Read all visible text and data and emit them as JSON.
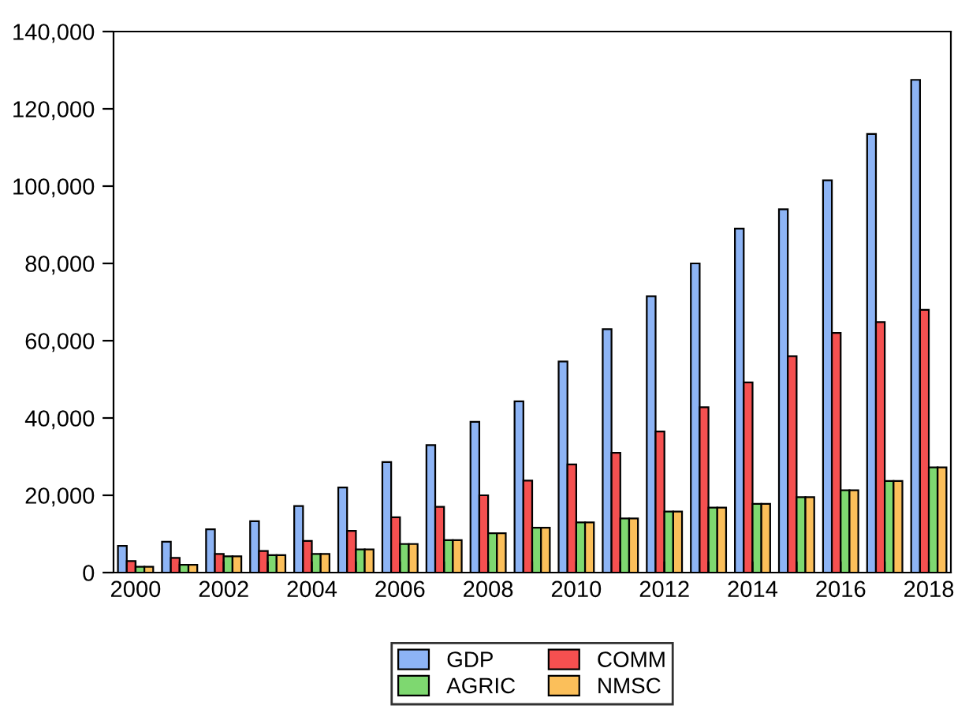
{
  "chart_data": {
    "type": "bar",
    "categories": [
      "2000",
      null,
      "2002",
      null,
      "2004",
      null,
      "2006",
      null,
      "2008",
      null,
      "2010",
      null,
      "2012",
      null,
      "2014",
      null,
      "2016",
      null,
      "2018"
    ],
    "series": [
      {
        "name": "GDP",
        "color": "#8db4f5",
        "values": [
          6900,
          8000,
          11200,
          13300,
          17200,
          22000,
          28600,
          33000,
          39000,
          44300,
          54600,
          63000,
          71500,
          80000,
          89000,
          94000,
          101500,
          113500,
          127500
        ]
      },
      {
        "name": "COMM",
        "color": "#f55050",
        "values": [
          3000,
          3800,
          4800,
          5600,
          8200,
          10800,
          14300,
          17000,
          20000,
          23800,
          28000,
          31000,
          36500,
          42800,
          49200,
          56000,
          62000,
          64800,
          68000
        ]
      },
      {
        "name": "AGRIC",
        "color": "#7ed870",
        "values": [
          1500,
          2000,
          4200,
          4500,
          4800,
          6000,
          7400,
          8400,
          10200,
          11600,
          13000,
          14000,
          15800,
          16800,
          17800,
          19500,
          21300,
          23700,
          27200
        ]
      },
      {
        "name": "NMSC",
        "color": "#fbbf5a",
        "values": [
          1500,
          2000,
          4200,
          4500,
          4800,
          6000,
          7400,
          8400,
          10200,
          11600,
          13000,
          14000,
          15800,
          16800,
          17800,
          19500,
          21300,
          23700,
          27200
        ]
      }
    ],
    "ylim": [
      0,
      140000
    ],
    "yticks": [
      {
        "value": 0,
        "label": "0"
      },
      {
        "value": 20000,
        "label": "20,000"
      },
      {
        "value": 40000,
        "label": "40,000"
      },
      {
        "value": 60000,
        "label": "60,000"
      },
      {
        "value": 80000,
        "label": "80,000"
      },
      {
        "value": 100000,
        "label": "100,000"
      },
      {
        "value": 120000,
        "label": "120,000"
      },
      {
        "value": 140000,
        "label": "140,000"
      }
    ],
    "grid": false,
    "legend": "bottom"
  }
}
